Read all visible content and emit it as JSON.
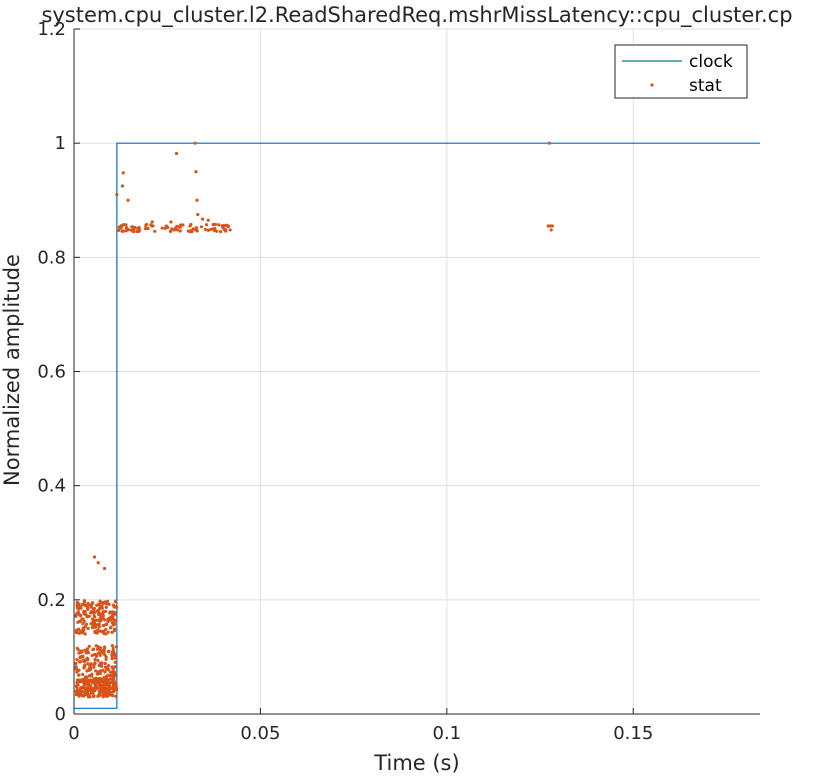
{
  "chart_data": {
    "type": "line",
    "title": "system.cpu_cluster.l2.ReadSharedReq.mshrMissLatency::cpu_cluster.cp",
    "xlabel": "Time (s)",
    "ylabel": "Normalized amplitude",
    "xlim": [
      0,
      0.184
    ],
    "ylim": [
      0,
      1.2
    ],
    "x_ticks": [
      0,
      0.05,
      0.1,
      0.15
    ],
    "x_tick_labels": [
      "0",
      "0.05",
      "0.1",
      "0.15"
    ],
    "y_ticks": [
      0,
      0.2,
      0.4,
      0.6,
      0.8,
      1,
      1.2
    ],
    "y_tick_labels": [
      "0",
      "0.2",
      "0.4",
      "0.6",
      "0.8",
      "1",
      "1.2"
    ],
    "grid": true,
    "legend_position": "top-right",
    "series": [
      {
        "name": "clock",
        "style": "line",
        "color": "#0072BD",
        "legend_color": "#00837a",
        "x": [
          0,
          0.0115,
          0.0115,
          0.184
        ],
        "y": [
          0.01,
          0.01,
          1.0,
          1.0
        ]
      },
      {
        "name": "stat",
        "style": "markers",
        "color": "#D95319",
        "clusters": [
          {
            "x_range": [
              0.0005,
              0.0115
            ],
            "y_range": [
              0.03,
              0.06
            ],
            "count": 220
          },
          {
            "x_range": [
              0.0005,
              0.0115
            ],
            "y_range": [
              0.06,
              0.12
            ],
            "count": 160
          },
          {
            "x_range": [
              0.0005,
              0.0115
            ],
            "y_range": [
              0.14,
              0.2
            ],
            "count": 180
          },
          {
            "x_range": [
              0.0115,
              0.043
            ],
            "y_range": [
              0.845,
              0.858
            ],
            "count": 90
          }
        ],
        "points": [
          {
            "x": 0.0055,
            "y": 0.275
          },
          {
            "x": 0.0065,
            "y": 0.265
          },
          {
            "x": 0.0082,
            "y": 0.255
          },
          {
            "x": 0.0115,
            "y": 0.91
          },
          {
            "x": 0.013,
            "y": 0.925
          },
          {
            "x": 0.0132,
            "y": 0.948
          },
          {
            "x": 0.0145,
            "y": 0.9
          },
          {
            "x": 0.0275,
            "y": 0.982
          },
          {
            "x": 0.0325,
            "y": 1.0
          },
          {
            "x": 0.0327,
            "y": 0.95
          },
          {
            "x": 0.033,
            "y": 0.9
          },
          {
            "x": 0.0332,
            "y": 0.875
          },
          {
            "x": 0.0345,
            "y": 0.867
          },
          {
            "x": 0.036,
            "y": 0.865
          },
          {
            "x": 0.026,
            "y": 0.862
          },
          {
            "x": 0.021,
            "y": 0.862
          },
          {
            "x": 0.1275,
            "y": 1.0
          },
          {
            "x": 0.1272,
            "y": 0.855
          },
          {
            "x": 0.1278,
            "y": 0.855
          },
          {
            "x": 0.128,
            "y": 0.848
          },
          {
            "x": 0.1283,
            "y": 0.855
          }
        ]
      }
    ]
  }
}
